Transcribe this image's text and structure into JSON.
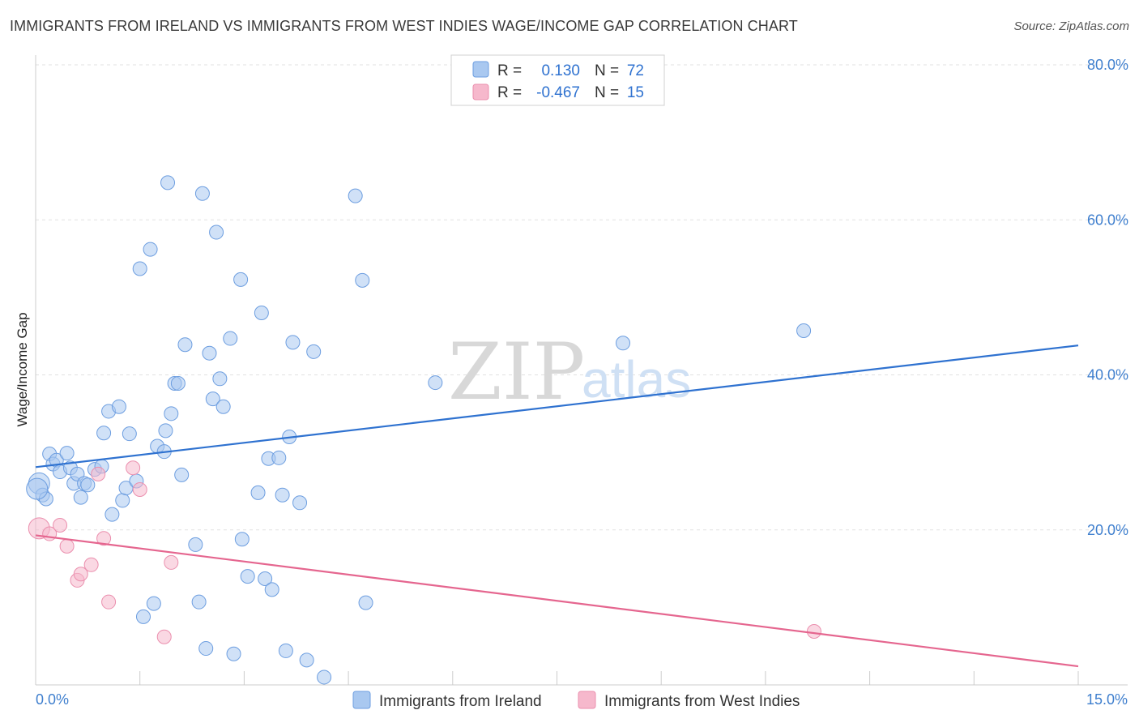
{
  "title": "IMMIGRANTS FROM IRELAND VS IMMIGRANTS FROM WEST INDIES WAGE/INCOME GAP CORRELATION CHART",
  "source": "Source: ZipAtlas.com",
  "watermark": {
    "part1": "ZIP",
    "part2": "atlas"
  },
  "legend_box": {
    "rows": [
      {
        "r_label": "R =",
        "r_value": "0.130",
        "n_label": "N =",
        "n_value": "72"
      },
      {
        "r_label": "R =",
        "r_value": "-0.467",
        "n_label": "N =",
        "n_value": "15"
      }
    ]
  },
  "chart_data": {
    "type": "scatter",
    "title": "IMMIGRANTS FROM IRELAND VS IMMIGRANTS FROM WEST INDIES WAGE/INCOME GAP CORRELATION CHART",
    "xlabel": "",
    "ylabel": "Wage/Income Gap",
    "xlim": [
      0,
      15
    ],
    "ylim": [
      0,
      80
    ],
    "x_tick_labels": [
      "0.0%",
      "15.0%"
    ],
    "y_ticks": [
      20,
      40,
      60,
      80
    ],
    "y_tick_labels": [
      "20.0%",
      "40.0%",
      "60.0%",
      "80.0%"
    ],
    "grid": true,
    "colors": {
      "ireland": "#a9c8f0",
      "ireland_edge": "#6d9ee0",
      "ireland_line": "#2f72d0",
      "west_indies": "#f6b8cc",
      "west_indies_edge": "#eb8fae",
      "west_indies_line": "#e5668f"
    },
    "series": [
      {
        "name": "Immigrants from Ireland",
        "r": 0.13,
        "n": 72,
        "trend": {
          "x": [
            0,
            15
          ],
          "y": [
            28.1,
            43.8
          ]
        },
        "points": [
          [
            0.05,
            26.0
          ],
          [
            0.1,
            24.5
          ],
          [
            0.15,
            24.0
          ],
          [
            0.2,
            29.8
          ],
          [
            0.25,
            28.5
          ],
          [
            0.3,
            29.0
          ],
          [
            0.35,
            27.5
          ],
          [
            0.45,
            29.9
          ],
          [
            0.5,
            28.0
          ],
          [
            0.55,
            26.0
          ],
          [
            0.6,
            27.2
          ],
          [
            0.65,
            24.2
          ],
          [
            0.7,
            26.0
          ],
          [
            0.75,
            25.8
          ],
          [
            0.85,
            27.8
          ],
          [
            0.95,
            28.2
          ],
          [
            0.98,
            32.5
          ],
          [
            1.05,
            35.3
          ],
          [
            1.1,
            22.0
          ],
          [
            1.2,
            35.9
          ],
          [
            1.25,
            23.8
          ],
          [
            1.3,
            25.4
          ],
          [
            1.35,
            32.4
          ],
          [
            1.45,
            26.3
          ],
          [
            1.5,
            53.7
          ],
          [
            1.55,
            8.8
          ],
          [
            1.65,
            56.2
          ],
          [
            1.7,
            10.5
          ],
          [
            1.75,
            30.8
          ],
          [
            1.85,
            30.1
          ],
          [
            1.87,
            32.8
          ],
          [
            1.9,
            64.8
          ],
          [
            1.95,
            35.0
          ],
          [
            2.0,
            38.9
          ],
          [
            2.05,
            38.9
          ],
          [
            2.1,
            27.1
          ],
          [
            2.15,
            43.9
          ],
          [
            2.3,
            18.1
          ],
          [
            2.35,
            10.7
          ],
          [
            2.4,
            63.4
          ],
          [
            2.45,
            4.7
          ],
          [
            2.5,
            42.8
          ],
          [
            2.55,
            36.9
          ],
          [
            2.6,
            58.4
          ],
          [
            2.65,
            39.5
          ],
          [
            2.7,
            35.9
          ],
          [
            2.8,
            44.7
          ],
          [
            2.85,
            4.0
          ],
          [
            2.95,
            52.3
          ],
          [
            2.97,
            18.8
          ],
          [
            3.05,
            14.0
          ],
          [
            3.2,
            24.8
          ],
          [
            3.25,
            48.0
          ],
          [
            3.3,
            13.7
          ],
          [
            3.35,
            29.2
          ],
          [
            3.4,
            12.3
          ],
          [
            3.5,
            29.3
          ],
          [
            3.55,
            24.5
          ],
          [
            3.6,
            4.4
          ],
          [
            3.65,
            32.0
          ],
          [
            3.7,
            44.2
          ],
          [
            3.8,
            23.5
          ],
          [
            3.9,
            3.2
          ],
          [
            4.0,
            43.0
          ],
          [
            4.15,
            1.0
          ],
          [
            4.6,
            63.1
          ],
          [
            4.7,
            52.2
          ],
          [
            4.75,
            10.6
          ],
          [
            5.75,
            39.0
          ],
          [
            8.45,
            44.1
          ],
          [
            11.05,
            45.7
          ],
          [
            0.02,
            25.3
          ]
        ]
      },
      {
        "name": "Immigrants from West Indies",
        "r": -0.467,
        "n": 15,
        "trend": {
          "x": [
            0,
            15
          ],
          "y": [
            19.3,
            2.4
          ]
        },
        "points": [
          [
            0.05,
            20.2
          ],
          [
            0.2,
            19.5
          ],
          [
            0.35,
            20.6
          ],
          [
            0.45,
            17.9
          ],
          [
            0.6,
            13.5
          ],
          [
            0.65,
            14.3
          ],
          [
            0.8,
            15.5
          ],
          [
            0.9,
            27.2
          ],
          [
            0.98,
            18.9
          ],
          [
            1.05,
            10.7
          ],
          [
            1.4,
            28.0
          ],
          [
            1.5,
            25.2
          ],
          [
            1.85,
            6.2
          ],
          [
            1.95,
            15.8
          ],
          [
            11.2,
            6.9
          ]
        ]
      }
    ]
  }
}
